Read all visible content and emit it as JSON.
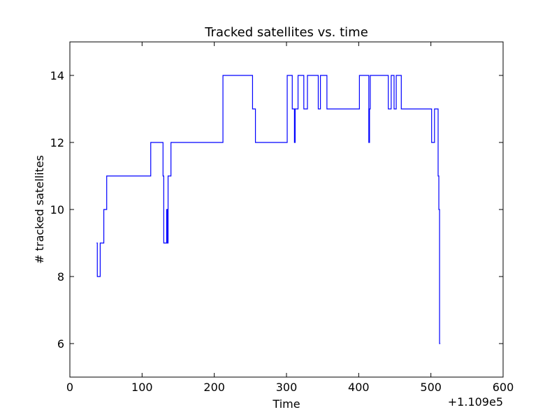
{
  "chart_data": {
    "type": "line",
    "title": "Tracked satellites vs. time",
    "xlabel": "Time",
    "ylabel": "# tracked satellites",
    "x_offset_label": "+1.109e5",
    "xlim": [
      0,
      600
    ],
    "ylim": [
      5,
      15
    ],
    "x_ticks": [
      0,
      100,
      200,
      300,
      400,
      500,
      600
    ],
    "y_ticks": [
      6,
      8,
      10,
      12,
      14
    ],
    "grid": false,
    "series": [
      {
        "color": "#0000ff",
        "drawstyle": "steps-post",
        "points": [
          [
            37,
            9
          ],
          [
            38,
            8
          ],
          [
            42,
            9
          ],
          [
            47,
            10
          ],
          [
            51,
            11
          ],
          [
            112,
            12
          ],
          [
            129,
            11
          ],
          [
            130,
            9
          ],
          [
            134,
            10
          ],
          [
            135,
            9
          ],
          [
            136,
            11
          ],
          [
            140,
            12
          ],
          [
            212,
            14
          ],
          [
            253,
            13
          ],
          [
            257,
            12
          ],
          [
            301,
            14
          ],
          [
            308,
            13
          ],
          [
            311,
            12
          ],
          [
            312,
            13
          ],
          [
            316,
            14
          ],
          [
            324,
            13
          ],
          [
            329,
            14
          ],
          [
            344,
            13
          ],
          [
            347,
            14
          ],
          [
            356,
            13
          ],
          [
            401,
            14
          ],
          [
            414,
            12
          ],
          [
            415,
            13
          ],
          [
            416,
            14
          ],
          [
            441,
            13
          ],
          [
            445,
            14
          ],
          [
            449,
            13
          ],
          [
            452,
            14
          ],
          [
            459,
            13
          ],
          [
            501,
            12
          ],
          [
            505,
            13
          ],
          [
            510,
            11
          ],
          [
            511,
            10
          ],
          [
            512,
            6
          ],
          [
            513,
            6
          ]
        ]
      }
    ]
  }
}
